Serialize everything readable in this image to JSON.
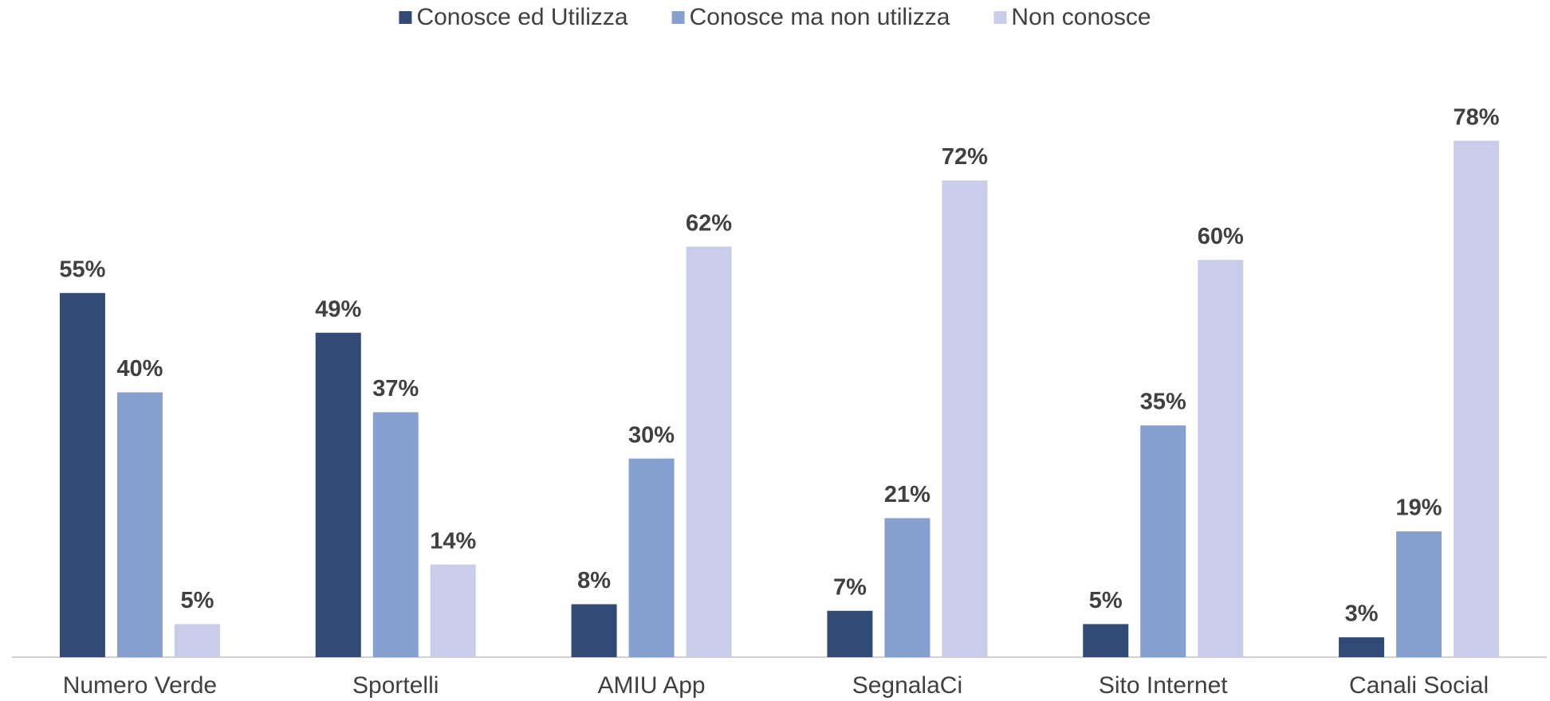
{
  "chart_data": {
    "type": "bar",
    "categories": [
      "Numero Verde",
      "Sportelli",
      "AMIU App",
      "SegnalaCi",
      "Sito Internet",
      "Canali Social"
    ],
    "series": [
      {
        "name": "Conosce ed Utilizza",
        "color": "#314a76",
        "values": [
          55,
          49,
          8,
          7,
          5,
          3
        ],
        "value_labels": [
          "55%",
          "49%",
          "8%",
          "7%",
          "5%",
          "3%"
        ]
      },
      {
        "name": "Conosce ma non utilizza",
        "color": "#86a0cf",
        "values": [
          40,
          37,
          30,
          21,
          35,
          19
        ],
        "value_labels": [
          "40%",
          "37%",
          "30%",
          "21%",
          "35%",
          "19%"
        ]
      },
      {
        "name": "Non conosce",
        "color": "#c9cdea",
        "values": [
          5,
          14,
          62,
          72,
          60,
          78
        ],
        "value_labels": [
          "5%",
          "14%",
          "62%",
          "72%",
          "60%",
          "78%"
        ]
      }
    ],
    "ylim": [
      0,
      80
    ],
    "legend": "top"
  }
}
